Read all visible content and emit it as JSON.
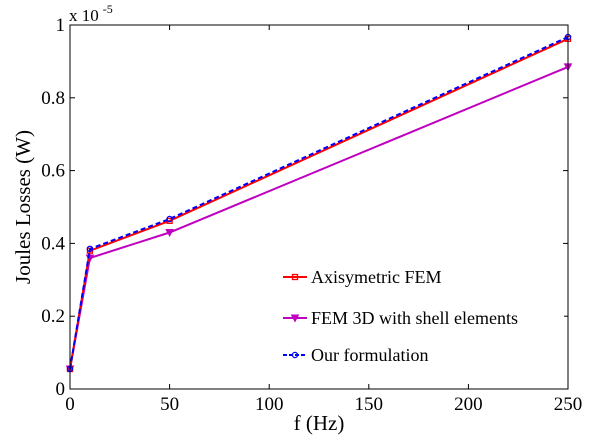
{
  "chart_data": {
    "type": "line",
    "xlabel": "f (Hz)",
    "ylabel": "Joules Losses (W)",
    "y_exponent_base": "x 10",
    "y_exponent_power": "-5",
    "xlim": [
      0,
      250
    ],
    "ylim": [
      0,
      1
    ],
    "xticks": [
      0,
      50,
      100,
      150,
      200,
      250
    ],
    "xtick_labels": [
      "0",
      "50",
      "100",
      "150",
      "200",
      "250"
    ],
    "yticks": [
      0,
      0.2,
      0.4,
      0.6,
      0.8,
      1
    ],
    "ytick_labels": [
      "0",
      "0.2",
      "0.4",
      "0.6",
      "0.8",
      "1"
    ],
    "grid": false,
    "legend_position": "bottom-right",
    "series": [
      {
        "name": "Axisymetric FEM",
        "color": "#ff0000",
        "line_style": "solid",
        "marker": "square",
        "x": [
          0,
          10,
          50,
          250
        ],
        "y": [
          0.055,
          0.38,
          0.462,
          0.962
        ]
      },
      {
        "name": "FEM 3D with shell elements",
        "color": "#c000c0",
        "line_style": "solid",
        "marker": "triangle-down",
        "x": [
          0,
          10,
          50,
          250
        ],
        "y": [
          0.055,
          0.36,
          0.43,
          0.885
        ]
      },
      {
        "name": "Our formulation",
        "color": "#0000ff",
        "line_style": "dashed",
        "marker": "circle",
        "x": [
          0,
          10,
          50,
          250
        ],
        "y": [
          0.055,
          0.385,
          0.467,
          0.967
        ]
      }
    ]
  }
}
